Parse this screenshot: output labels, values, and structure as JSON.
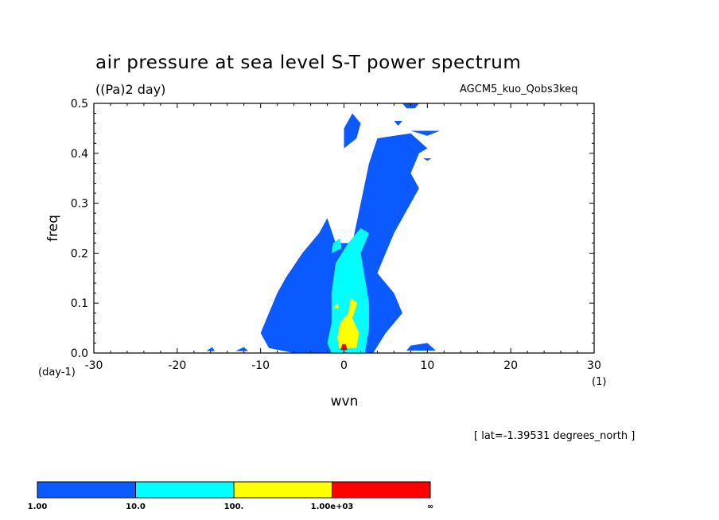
{
  "title": "air pressure at sea level S-T power spectrum",
  "units": "((Pa)2 day)",
  "run_name": "AGCM5_kuo_Qobs3keq",
  "lat_note": "[ lat=-1.39531 degrees_north ]",
  "chart_data": {
    "type": "heatmap",
    "title": "air pressure at sea level S-T power spectrum",
    "subtitle": "((Pa)2 day)",
    "xlabel": "wvn",
    "ylabel": "freq",
    "x_unit": "(1)",
    "y_unit": "(day-1)",
    "xlim": [
      -30,
      30
    ],
    "ylim": [
      0,
      0.5
    ],
    "x_ticks": [
      "-30",
      "-20",
      "-10",
      "0",
      "10",
      "20",
      "30"
    ],
    "y_ticks": [
      "0.0",
      "0.1",
      "0.2",
      "0.3",
      "0.4",
      "0.5"
    ],
    "grid": false,
    "colorbar": {
      "boundaries": [
        "1.00",
        "10.0",
        "100.",
        "1.00e+03",
        "∞"
      ],
      "colors": [
        "#0a5aff",
        "#00ffff",
        "#ffff00",
        "#ff0000"
      ]
    },
    "regions": [
      {
        "level": 0,
        "points": [
          [
            -2.5,
            0
          ],
          [
            3.5,
            0
          ],
          [
            5,
            0.04
          ],
          [
            7,
            0.08
          ],
          [
            6,
            0.12
          ],
          [
            4,
            0.16
          ],
          [
            5,
            0.2
          ],
          [
            6,
            0.24
          ],
          [
            7,
            0.27
          ],
          [
            9,
            0.33
          ],
          [
            8,
            0.36
          ],
          [
            9,
            0.4
          ],
          [
            10,
            0.41
          ],
          [
            8,
            0.44
          ],
          [
            4,
            0.43
          ],
          [
            3,
            0.38
          ],
          [
            2,
            0.3
          ],
          [
            1,
            0.22
          ],
          [
            -1,
            0.22
          ],
          [
            -2,
            0.27
          ],
          [
            -3,
            0.24
          ],
          [
            -5,
            0.2
          ],
          [
            -7,
            0.15
          ],
          [
            -8,
            0.12
          ],
          [
            -9,
            0.08
          ],
          [
            -10,
            0.04
          ],
          [
            -9,
            0.01
          ],
          [
            -6,
            0
          ]
        ]
      },
      {
        "level": 0,
        "points": [
          [
            0,
            0.41
          ],
          [
            1.5,
            0.43
          ],
          [
            2,
            0.46
          ],
          [
            1,
            0.48
          ],
          [
            0,
            0.45
          ]
        ]
      },
      {
        "level": 0,
        "points": [
          [
            7,
            0.5
          ],
          [
            9,
            0.5
          ],
          [
            8.5,
            0.49
          ],
          [
            7.5,
            0.49
          ]
        ]
      },
      {
        "level": 0,
        "points": [
          [
            6,
            0.465
          ],
          [
            7,
            0.465
          ],
          [
            6.5,
            0.455
          ]
        ]
      },
      {
        "level": 0,
        "points": [
          [
            8,
            0.445
          ],
          [
            11.5,
            0.445
          ],
          [
            10,
            0.435
          ]
        ]
      },
      {
        "level": 0,
        "points": [
          [
            7.5,
            0.005
          ],
          [
            11,
            0.005
          ],
          [
            10,
            0.02
          ],
          [
            8,
            0.015
          ]
        ]
      },
      {
        "level": 0,
        "points": [
          [
            -16.5,
            0.004
          ],
          [
            -15.5,
            0.004
          ],
          [
            -15.8,
            0.012
          ]
        ]
      },
      {
        "level": 0,
        "points": [
          [
            -13,
            0.004
          ],
          [
            -11.5,
            0.004
          ],
          [
            -12,
            0.012
          ]
        ]
      },
      {
        "level": 0,
        "points": [
          [
            9.5,
            0.39
          ],
          [
            10.5,
            0.39
          ],
          [
            10,
            0.385
          ]
        ]
      },
      {
        "level": 1,
        "points": [
          [
            -1.5,
            0
          ],
          [
            2.5,
            0
          ],
          [
            3,
            0.05
          ],
          [
            3,
            0.1
          ],
          [
            2.5,
            0.15
          ],
          [
            2,
            0.2
          ],
          [
            3,
            0.24
          ],
          [
            2,
            0.25
          ],
          [
            0.5,
            0.22
          ],
          [
            -1,
            0.18
          ],
          [
            -1.5,
            0.12
          ],
          [
            -1.5,
            0.06
          ],
          [
            -2,
            0.02
          ]
        ]
      },
      {
        "level": 1,
        "points": [
          [
            -1.5,
            0.2
          ],
          [
            -0.3,
            0.21
          ],
          [
            -0.5,
            0.23
          ],
          [
            -1.3,
            0.22
          ]
        ]
      },
      {
        "level": 2,
        "points": [
          [
            -0.6,
            0.01
          ],
          [
            1.5,
            0.01
          ],
          [
            1.8,
            0.04
          ],
          [
            1,
            0.07
          ],
          [
            1.6,
            0.1
          ],
          [
            0.8,
            0.11
          ],
          [
            0.5,
            0.08
          ],
          [
            -0.5,
            0.06
          ],
          [
            -0.8,
            0.03
          ]
        ]
      },
      {
        "level": 2,
        "points": [
          [
            -1.3,
            0.09
          ],
          [
            -0.6,
            0.09
          ],
          [
            -0.8,
            0.1
          ]
        ]
      },
      {
        "level": 3,
        "points": [
          [
            -0.4,
            0.006
          ],
          [
            0.4,
            0.006
          ],
          [
            0.2,
            0.018
          ],
          [
            -0.2,
            0.018
          ]
        ]
      }
    ]
  }
}
